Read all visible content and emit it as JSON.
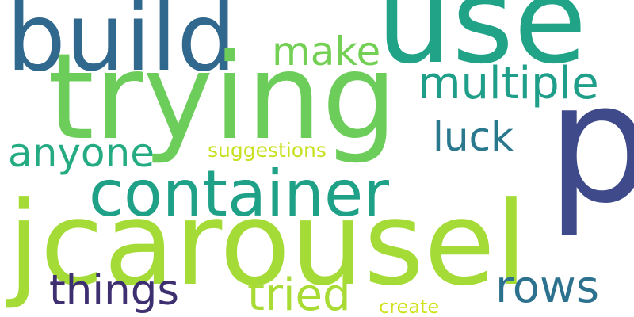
{
  "words": [
    {
      "id": "build",
      "text": "build",
      "color": "#31688e"
    },
    {
      "id": "use",
      "text": "use",
      "color": "#20a386"
    },
    {
      "id": "trying",
      "text": "trying",
      "color": "#6ccd5a"
    },
    {
      "id": "p",
      "text": "p",
      "color": "#3f4a8a"
    },
    {
      "id": "make",
      "text": "make",
      "color": "#74d055"
    },
    {
      "id": "multiple",
      "text": "multiple",
      "color": "#1f9e89"
    },
    {
      "id": "luck",
      "text": "luck",
      "color": "#2a788e"
    },
    {
      "id": "anyone",
      "text": "anyone",
      "color": "#25ab82"
    },
    {
      "id": "suggestions",
      "text": "suggestions",
      "color": "#c8e020"
    },
    {
      "id": "container",
      "text": "container",
      "color": "#1fa187"
    },
    {
      "id": "jcarousel",
      "text": "jcarousel",
      "color": "#a5db36"
    },
    {
      "id": "things",
      "text": "things",
      "color": "#3e2f71"
    },
    {
      "id": "tried",
      "text": "tried",
      "color": "#a8db34"
    },
    {
      "id": "rows",
      "text": "rows",
      "color": "#2c728e"
    },
    {
      "id": "create",
      "text": "create",
      "color": "#d0e11c"
    }
  ]
}
